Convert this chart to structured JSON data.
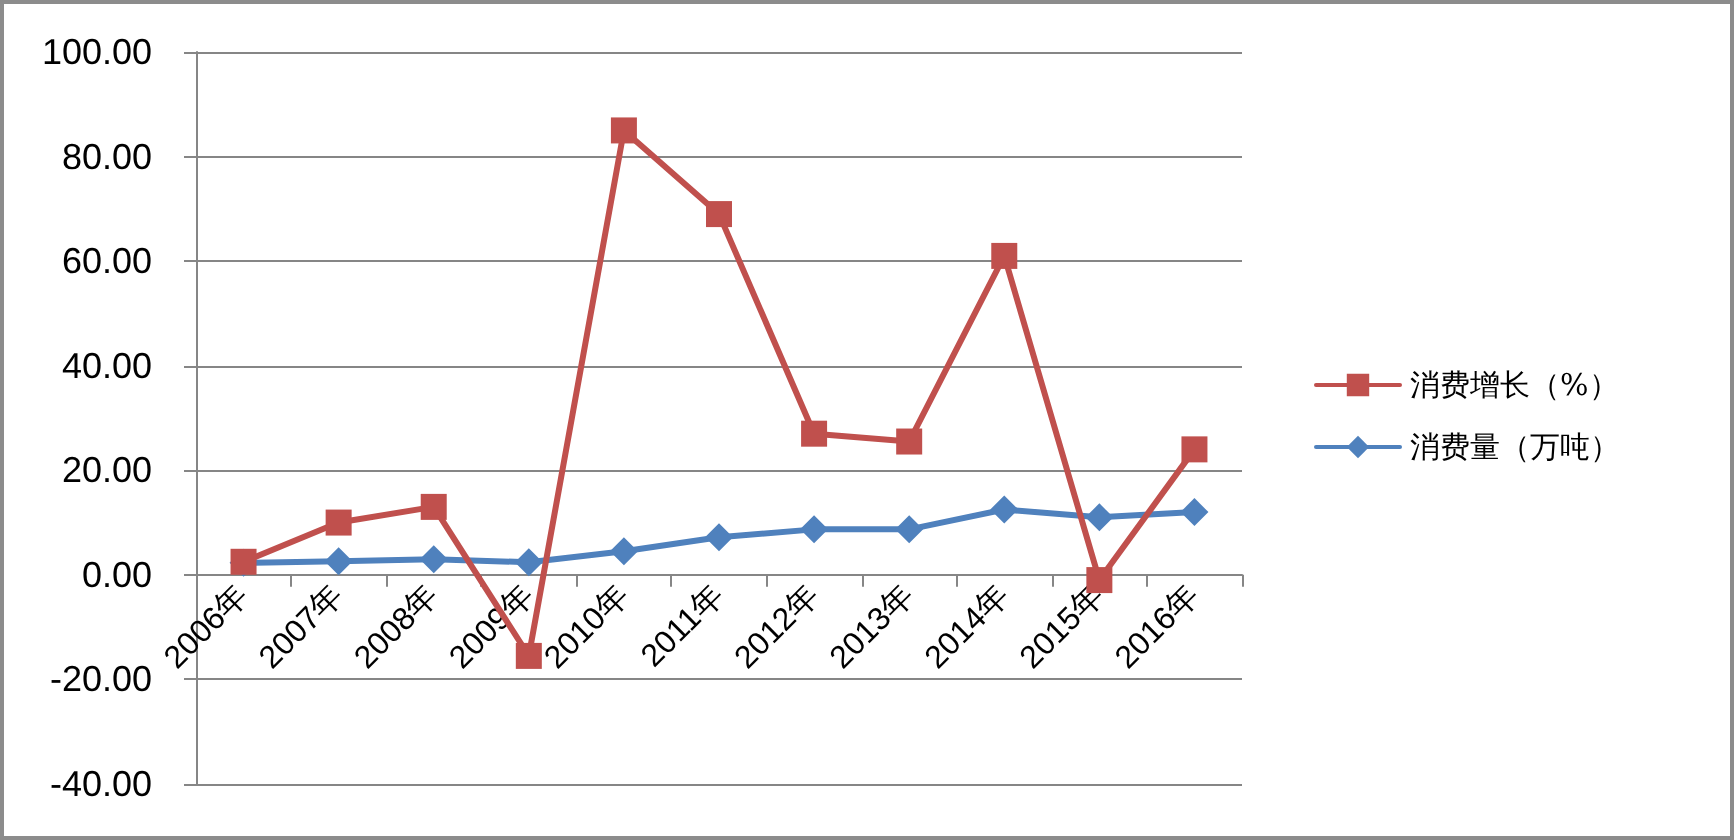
{
  "chart_data": {
    "type": "line",
    "categories": [
      "2006年",
      "2007年",
      "2008年",
      "2009年",
      "2010年",
      "2011年",
      "2012年",
      "2013年",
      "2014年",
      "2015年",
      "2016年"
    ],
    "series": [
      {
        "name": "消费增长（%）",
        "color": "#c0504d",
        "marker": "square",
        "values": [
          2.5,
          10,
          13,
          -15.5,
          85,
          69,
          27,
          25.5,
          61,
          -1,
          24
        ]
      },
      {
        "name": "消费量（万吨）",
        "color": "#4f81bd",
        "marker": "diamond",
        "values": [
          2.3,
          2.6,
          3,
          2.4,
          4.5,
          7.2,
          8.7,
          8.7,
          12.5,
          11,
          12
        ]
      }
    ],
    "ylim": [
      -40,
      100
    ],
    "yticks": [
      {
        "value": -40,
        "label": "-40.00"
      },
      {
        "value": -20,
        "label": "-20.00"
      },
      {
        "value": 0,
        "label": "0.00"
      },
      {
        "value": 20,
        "label": "20.00"
      },
      {
        "value": 40,
        "label": "40.00"
      },
      {
        "value": 60,
        "label": "60.00"
      },
      {
        "value": 80,
        "label": "80.00"
      },
      {
        "value": 100,
        "label": "100.00"
      }
    ],
    "grid": "y",
    "legend": "right",
    "line_style": "solid"
  }
}
